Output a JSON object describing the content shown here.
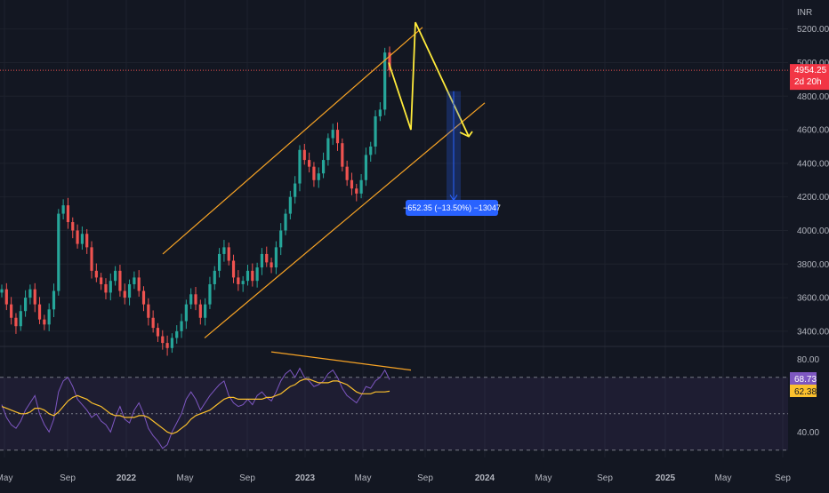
{
  "currency_label": "INR",
  "price_tag": {
    "value": "4954.25",
    "countdown": "2d 20h"
  },
  "measure_label": "−652.35 (−13.50%) −13047",
  "rsi_tags": {
    "rsi": "68.73",
    "ma": "62.38"
  },
  "colors": {
    "background": "#131722",
    "up": "#26a69a",
    "down": "#ef5350",
    "channel": "#f7a325",
    "projection": "#ffeb3b",
    "rsi_line": "#7e57c2",
    "rsi_ma": "#fbc02d",
    "price_line": "#ef5350",
    "measure": "#2962ff"
  },
  "chart_data": [
    {
      "type": "candlestick",
      "y_axis": {
        "ticks": [
          "5200.00",
          "5000.00",
          "4800.00",
          "4600.00",
          "4400.00",
          "4200.00",
          "4000.00",
          "3800.00",
          "3600.00",
          "3400.00"
        ],
        "range": [
          3320,
          5320
        ]
      },
      "x_axis": {
        "ticks": [
          "May",
          "Sep",
          "2022",
          "May",
          "Sep",
          "2023",
          "May",
          "Sep",
          "2024",
          "May",
          "Sep",
          "2025",
          "May",
          "Sep"
        ],
        "bold": [
          "2022",
          "2023",
          "2024",
          "2025"
        ]
      },
      "last_price": 4954.25,
      "close_series": [
        3650,
        3560,
        3480,
        3430,
        3520,
        3600,
        3650,
        3560,
        3470,
        3440,
        3530,
        3640,
        4100,
        4150,
        4050,
        4000,
        3920,
        3980,
        3900,
        3760,
        3720,
        3680,
        3630,
        3700,
        3760,
        3640,
        3600,
        3680,
        3720,
        3640,
        3560,
        3480,
        3420,
        3370,
        3330,
        3300,
        3360,
        3400,
        3460,
        3560,
        3620,
        3560,
        3480,
        3560,
        3680,
        3760,
        3860,
        3900,
        3820,
        3720,
        3680,
        3700,
        3760,
        3700,
        3780,
        3860,
        3810,
        3780,
        3900,
        4000,
        4100,
        4200,
        4280,
        4480,
        4420,
        4380,
        4300,
        4340,
        4420,
        4550,
        4600,
        4520,
        4380,
        4300,
        4250,
        4220,
        4300,
        4450,
        4500,
        4680,
        4720,
        5060,
        4954
      ],
      "channel": {
        "upper": [
          [
            3860,
            5210
          ]
        ],
        "lower": [
          [
            3360,
            4760
          ]
        ]
      },
      "measure": {
        "change": -652.35,
        "percent": -13.5,
        "ticks": -13047
      }
    },
    {
      "type": "line",
      "indicator": "RSI",
      "y_axis": {
        "ticks": [
          "80.00",
          "40.00"
        ],
        "range": [
          26,
          86
        ]
      },
      "levels": [
        70,
        50,
        30
      ],
      "series": [
        {
          "values": [
            55,
            48,
            44,
            42,
            46,
            52,
            56,
            60,
            50,
            44,
            40,
            47,
            62,
            68,
            70,
            65,
            58,
            55,
            52,
            48,
            50,
            46,
            44,
            40,
            48,
            54,
            47,
            45,
            52,
            56,
            50,
            42,
            38,
            35,
            31,
            33,
            40,
            45,
            50,
            58,
            62,
            58,
            52,
            56,
            60,
            63,
            66,
            68,
            60,
            56,
            54,
            55,
            58,
            55,
            60,
            62,
            59,
            57,
            62,
            68,
            72,
            74,
            70,
            75,
            70,
            68,
            65,
            66,
            68,
            72,
            74,
            70,
            64,
            60,
            58,
            56,
            60,
            65,
            64,
            68,
            70,
            74,
            68.73
          ]
        },
        {
          "values": [
            54,
            53,
            52,
            51,
            50,
            50,
            51,
            53,
            53,
            52,
            50,
            49,
            51,
            54,
            57,
            59,
            60,
            59,
            58,
            56,
            55,
            54,
            52,
            50,
            49,
            49,
            48,
            48,
            48,
            49,
            49,
            48,
            46,
            44,
            42,
            40,
            39,
            40,
            42,
            44,
            47,
            49,
            50,
            51,
            52,
            54,
            56,
            58,
            59,
            59,
            58,
            58,
            58,
            58,
            58,
            58,
            59,
            59,
            60,
            61,
            63,
            65,
            66,
            68,
            69,
            69,
            68,
            67,
            67,
            67,
            68,
            68,
            67,
            66,
            64,
            62,
            61,
            61,
            61,
            62,
            62,
            62,
            62.38
          ]
        }
      ]
    }
  ]
}
